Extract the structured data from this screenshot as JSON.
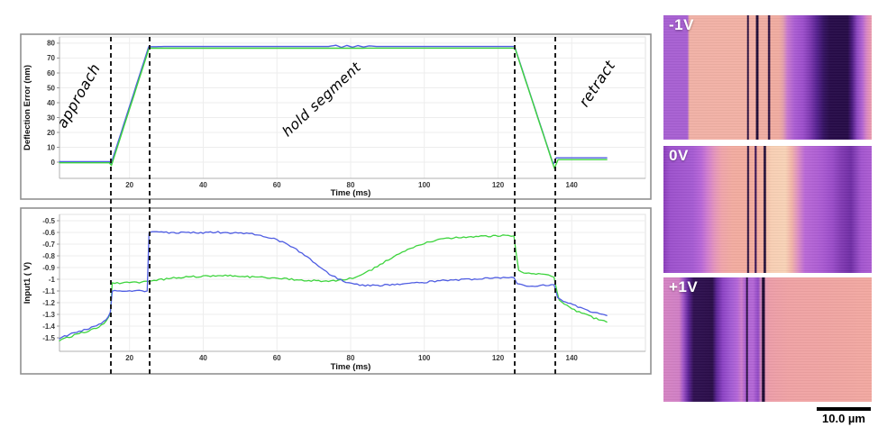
{
  "chart_data": [
    {
      "type": "line",
      "title": "",
      "xlabel": "Time (ms)",
      "ylabel": "Deflection Error (nm)",
      "x_range": [
        1,
        160
      ],
      "y_range": [
        -10.9,
        84.2
      ],
      "grid": true,
      "legend": "none",
      "x_ticks": [
        {
          "v": 20,
          "label": "20"
        },
        {
          "v": 40,
          "label": "40"
        },
        {
          "v": 60,
          "label": "60"
        },
        {
          "v": 80,
          "label": "80"
        },
        {
          "v": 100,
          "label": "100"
        },
        {
          "v": 120,
          "label": "120"
        },
        {
          "v": 140,
          "label": "140"
        }
      ],
      "y_ticks": [
        {
          "v": 0,
          "label": "0"
        },
        {
          "v": 10,
          "label": "10"
        },
        {
          "v": 20,
          "label": "20"
        },
        {
          "v": 30,
          "label": "30"
        },
        {
          "v": 40,
          "label": "40"
        },
        {
          "v": 50,
          "label": "50"
        },
        {
          "v": 60,
          "label": "60"
        },
        {
          "v": 70,
          "label": "70"
        },
        {
          "v": 80,
          "label": "80"
        }
      ],
      "series": [
        {
          "name": "blue-trace",
          "color": "#4f5de2",
          "noise": 0,
          "points": [
            [
              1,
              0.3
            ],
            [
              14.6,
              0.3
            ],
            [
              15,
              -1
            ],
            [
              25.2,
              77.6
            ],
            [
              30,
              77.8
            ],
            [
              74,
              77.8
            ],
            [
              76,
              78.6
            ],
            [
              77.5,
              77.2
            ],
            [
              79,
              78.5
            ],
            [
              80.5,
              77.3
            ],
            [
              82,
              78.4
            ],
            [
              83.5,
              77.4
            ],
            [
              85,
              78.2
            ],
            [
              87,
              77.8
            ],
            [
              124.5,
              77.8
            ],
            [
              135,
              -1.5
            ],
            [
              135.8,
              2.9
            ],
            [
              149.5,
              2.9
            ]
          ]
        },
        {
          "name": "green-trace",
          "color": "#3ed43e",
          "noise": 0,
          "points": [
            [
              1,
              -0.4
            ],
            [
              14.5,
              -0.4
            ],
            [
              15.1,
              -2.2
            ],
            [
              25.3,
              76.6
            ],
            [
              124.6,
              76.7
            ],
            [
              135.3,
              -4.2
            ],
            [
              136.3,
              1.7
            ],
            [
              149.5,
              1.7
            ]
          ]
        }
      ],
      "annotations": [
        {
          "text": "approach",
          "t": 7.3,
          "v": 43,
          "rotate": -60,
          "size": 16
        },
        {
          "text": "hold segment",
          "t": 73,
          "v": 40,
          "rotate": -43,
          "size": 15.5
        },
        {
          "text": "retract",
          "t": 148,
          "v": 51,
          "rotate": -56,
          "size": 16
        }
      ]
    },
    {
      "type": "line",
      "title": "",
      "xlabel": "Time (ms)",
      "ylabel": "Input1 ( V)",
      "x_range": [
        1,
        160
      ],
      "y_range": [
        -1.615,
        -0.446
      ],
      "grid": true,
      "legend": "none",
      "x_ticks": [
        {
          "v": 20,
          "label": "20"
        },
        {
          "v": 40,
          "label": "40"
        },
        {
          "v": 60,
          "label": "60"
        },
        {
          "v": 80,
          "label": "80"
        },
        {
          "v": 100,
          "label": "100"
        },
        {
          "v": 120,
          "label": "120"
        },
        {
          "v": 140,
          "label": "140"
        }
      ],
      "y_ticks": [
        {
          "v": -0.5,
          "label": "-0.5"
        },
        {
          "v": -0.6,
          "label": "-0.6"
        },
        {
          "v": -0.7,
          "label": "-0.7"
        },
        {
          "v": -0.8,
          "label": "-0.8"
        },
        {
          "v": -0.9,
          "label": "-0.9"
        },
        {
          "v": -1,
          "label": "-1"
        },
        {
          "v": -1.1,
          "label": "-1.1"
        },
        {
          "v": -1.2,
          "label": "-1.2"
        },
        {
          "v": -1.3,
          "label": "-1.3"
        },
        {
          "v": -1.4,
          "label": "-1.4"
        },
        {
          "v": -1.5,
          "label": "-1.5"
        }
      ],
      "series": [
        {
          "name": "green-trace",
          "color": "#3ed43e",
          "noise": 0.007,
          "points": [
            [
              1,
              -1.525
            ],
            [
              3,
              -1.5
            ],
            [
              5,
              -1.478
            ],
            [
              7,
              -1.458
            ],
            [
              9,
              -1.44
            ],
            [
              11,
              -1.415
            ],
            [
              13,
              -1.38
            ],
            [
              14.2,
              -1.335
            ],
            [
              14.8,
              -1.29
            ],
            [
              15.3,
              -1.035
            ],
            [
              18,
              -1.03
            ],
            [
              22,
              -1.025
            ],
            [
              25.2,
              -1.02
            ],
            [
              28,
              -1.005
            ],
            [
              32,
              -0.99
            ],
            [
              36,
              -0.98
            ],
            [
              40,
              -0.975
            ],
            [
              44,
              -0.968
            ],
            [
              48,
              -0.972
            ],
            [
              52,
              -0.978
            ],
            [
              56,
              -0.985
            ],
            [
              60,
              -0.99
            ],
            [
              64,
              -1.0
            ],
            [
              68,
              -1.008
            ],
            [
              72,
              -1.013
            ],
            [
              76,
              -1.012
            ],
            [
              79,
              -1.0
            ],
            [
              82,
              -0.975
            ],
            [
              85,
              -0.93
            ],
            [
              88,
              -0.875
            ],
            [
              91,
              -0.82
            ],
            [
              94,
              -0.77
            ],
            [
              97,
              -0.725
            ],
            [
              100,
              -0.69
            ],
            [
              103,
              -0.668
            ],
            [
              106,
              -0.652
            ],
            [
              110,
              -0.64
            ],
            [
              114,
              -0.636
            ],
            [
              118,
              -0.632
            ],
            [
              122,
              -0.626
            ],
            [
              124.3,
              -0.632
            ],
            [
              125,
              -0.8
            ],
            [
              125.6,
              -0.925
            ],
            [
              127,
              -0.94
            ],
            [
              129,
              -0.95
            ],
            [
              131,
              -0.955
            ],
            [
              133,
              -0.962
            ],
            [
              135.2,
              -0.975
            ],
            [
              136,
              -1.1
            ],
            [
              136.6,
              -1.175
            ],
            [
              138,
              -1.215
            ],
            [
              140,
              -1.25
            ],
            [
              142,
              -1.28
            ],
            [
              144,
              -1.305
            ],
            [
              146,
              -1.33
            ],
            [
              148,
              -1.35
            ],
            [
              149.5,
              -1.365
            ]
          ]
        },
        {
          "name": "blue-trace",
          "color": "#4f5de2",
          "noise": 0.007,
          "points": [
            [
              1,
              -1.505
            ],
            [
              3,
              -1.48
            ],
            [
              5,
              -1.458
            ],
            [
              7,
              -1.44
            ],
            [
              9,
              -1.42
            ],
            [
              11,
              -1.395
            ],
            [
              13,
              -1.362
            ],
            [
              14.2,
              -1.32
            ],
            [
              14.8,
              -1.28
            ],
            [
              15.3,
              -1.102
            ],
            [
              18,
              -1.1
            ],
            [
              22,
              -1.098
            ],
            [
              24.8,
              -1.1
            ],
            [
              25.3,
              -0.602
            ],
            [
              28,
              -0.598
            ],
            [
              32,
              -0.602
            ],
            [
              36,
              -0.6
            ],
            [
              40,
              -0.603
            ],
            [
              44,
              -0.598
            ],
            [
              48,
              -0.605
            ],
            [
              51,
              -0.608
            ],
            [
              54,
              -0.615
            ],
            [
              57,
              -0.635
            ],
            [
              60,
              -0.662
            ],
            [
              63,
              -0.705
            ],
            [
              66,
              -0.762
            ],
            [
              69,
              -0.83
            ],
            [
              72,
              -0.905
            ],
            [
              75,
              -0.97
            ],
            [
              78,
              -1.018
            ],
            [
              81,
              -1.042
            ],
            [
              84,
              -1.052
            ],
            [
              88,
              -1.052
            ],
            [
              92,
              -1.045
            ],
            [
              96,
              -1.035
            ],
            [
              100,
              -1.025
            ],
            [
              105,
              -1.012
            ],
            [
              110,
              -1.002
            ],
            [
              115,
              -0.995
            ],
            [
              120,
              -0.988
            ],
            [
              124.3,
              -0.985
            ],
            [
              125.2,
              -1.04
            ],
            [
              127,
              -1.055
            ],
            [
              130,
              -1.058
            ],
            [
              133,
              -1.052
            ],
            [
              135.2,
              -1.048
            ],
            [
              136.2,
              -1.16
            ],
            [
              137,
              -1.175
            ],
            [
              139,
              -1.2
            ],
            [
              141,
              -1.225
            ],
            [
              143,
              -1.25
            ],
            [
              145,
              -1.272
            ],
            [
              147,
              -1.292
            ],
            [
              149.5,
              -1.31
            ]
          ]
        }
      ],
      "annotations": []
    }
  ],
  "figure": {
    "dashed_lines_t": [
      15,
      25.4,
      124.6,
      135.6
    ],
    "panels": [
      {
        "label": "-1V"
      },
      {
        "label": "0V"
      },
      {
        "label": "+1V"
      }
    ],
    "scalebar": {
      "label": "10.0 µm"
    },
    "colors": {
      "green": "#3ed43e",
      "blue": "#4f5de2",
      "dash": "#1c1c1c",
      "panel_dark": "#250a46",
      "panel_pink": "#f2b1a4"
    }
  }
}
